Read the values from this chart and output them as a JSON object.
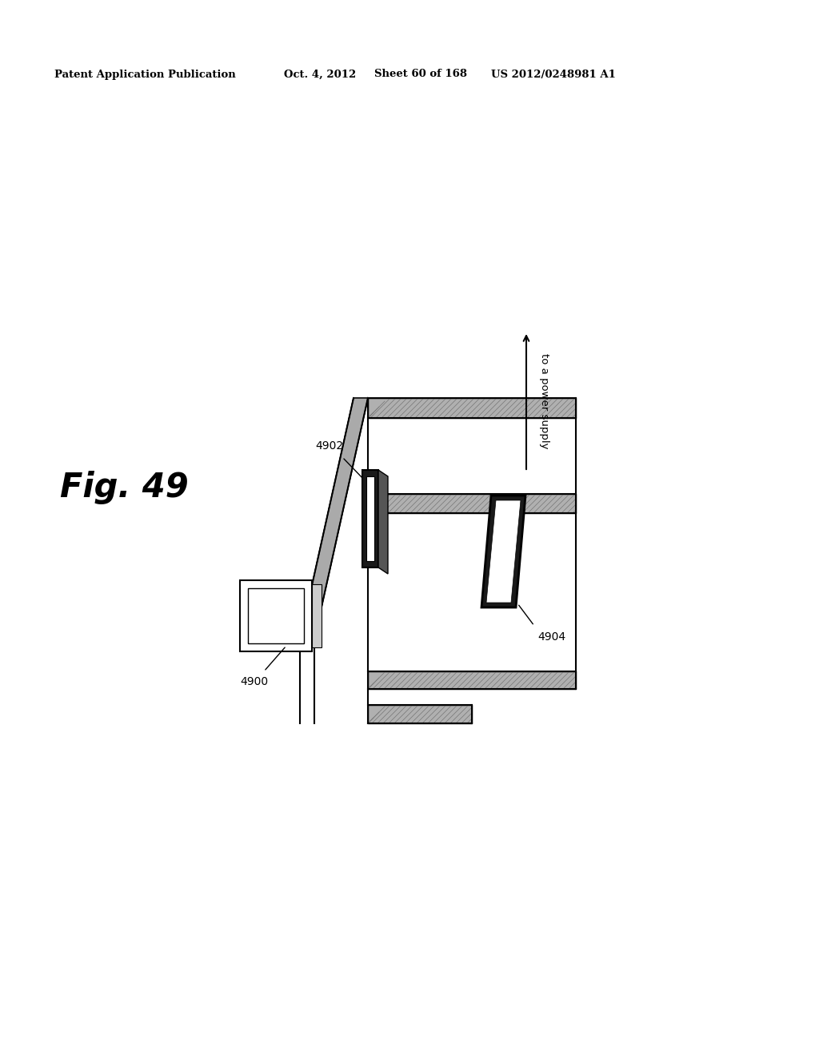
{
  "bg_color": "#ffffff",
  "header_text": "Patent Application Publication",
  "header_date": "Oct. 4, 2012",
  "header_sheet": "Sheet 60 of 168",
  "header_patent": "US 2012/0248981 A1",
  "fig_label": "Fig. 49",
  "label_4900": "4900",
  "label_4902": "4902",
  "label_4904": "4904",
  "label_arrow": "to a power supply",
  "hatch_color": "#b0b0b0",
  "line_color": "#000000",
  "room_color": "#aaaaaa"
}
